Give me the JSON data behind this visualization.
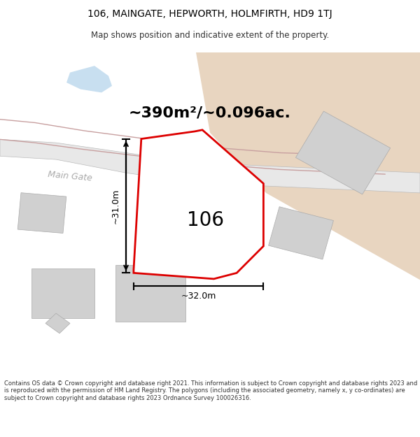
{
  "title_line1": "106, MAINGATE, HEPWORTH, HOLMFIRTH, HD9 1TJ",
  "title_line2": "Map shows position and indicative extent of the property.",
  "area_text": "~390m²/~0.096ac.",
  "label_106": "106",
  "dim_vertical": "~31.0m",
  "dim_horizontal": "~32.0m",
  "road_label": "Main Gate",
  "footer": "Contains OS data © Crown copyright and database right 2021. This information is subject to Crown copyright and database rights 2023 and is reproduced with the permission of HM Land Registry. The polygons (including the associated geometry, namely x, y co-ordinates) are subject to Crown copyright and database rights 2023 Ordnance Survey 100026316.",
  "bg_color": "#f5f5f0",
  "map_bg": "#ffffff",
  "plot_color_red": "#dd0000",
  "beige_fill": "#e8d5c0",
  "light_blue": "#c8dff0",
  "gray_road": "#c0c0c0",
  "building_gray": "#d0d0d0",
  "road_outline": "#c8a0a0"
}
